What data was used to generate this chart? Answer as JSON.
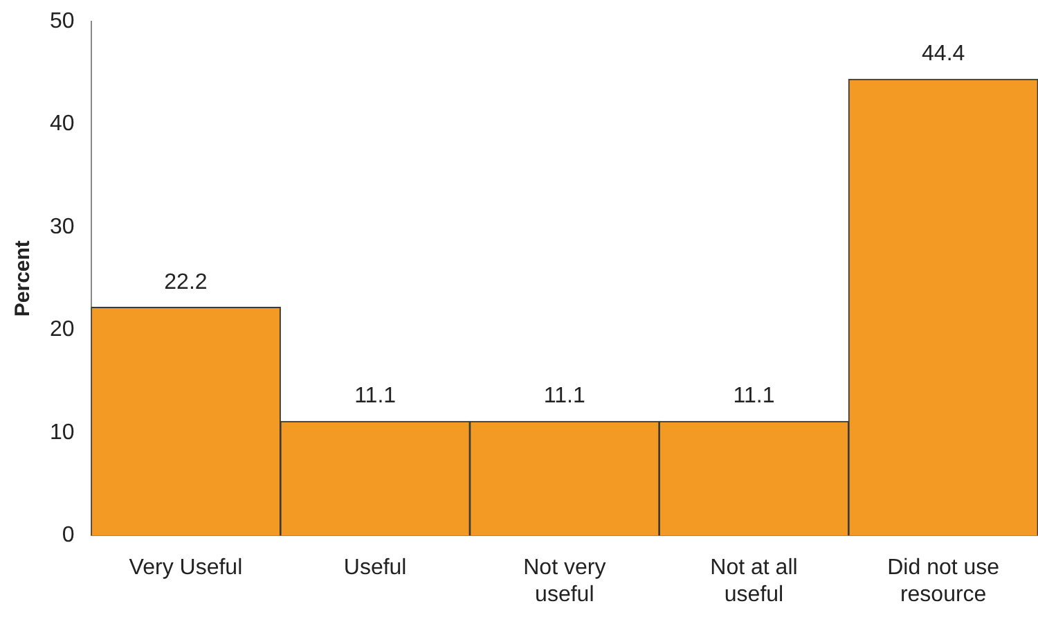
{
  "chart_data": {
    "type": "bar",
    "ylabel": "Percent",
    "categories": [
      "Very Useful",
      "Useful",
      "Not very useful",
      "Not at all useful",
      "Did not use resource"
    ],
    "values": [
      22.2,
      11.1,
      11.1,
      11.1,
      44.4
    ],
    "color": "#f39a24",
    "ylim": [
      0,
      50
    ],
    "yticks": [
      0,
      10,
      20,
      30,
      40,
      50
    ],
    "grid": false,
    "legend": false,
    "data_labels": true
  }
}
